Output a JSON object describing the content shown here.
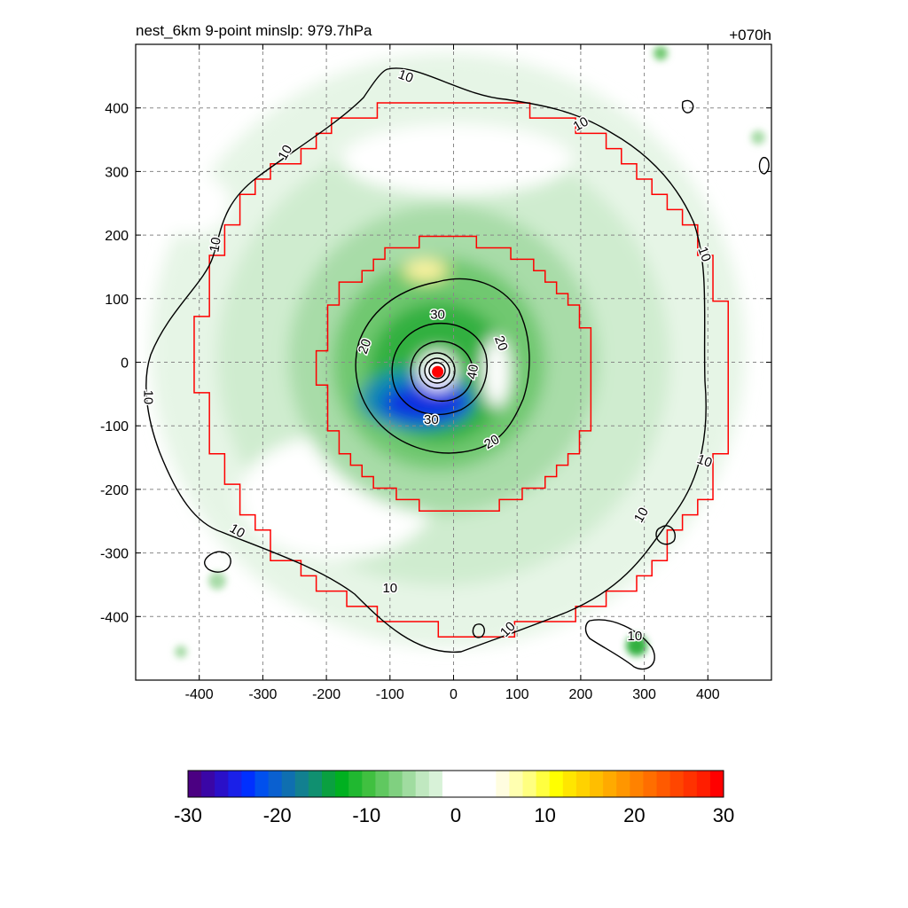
{
  "chart_data": {
    "type": "heatmap",
    "title_left": "nest_6km  9-point minslp: 979.7hPa",
    "title_right": "+070h",
    "x_range": [
      -500,
      500
    ],
    "y_range": [
      -500,
      500
    ],
    "x_ticks": [
      -400,
      -300,
      -200,
      -100,
      0,
      100,
      200,
      300,
      400
    ],
    "y_ticks": [
      400,
      300,
      200,
      100,
      0,
      -100,
      -200,
      -300,
      -400
    ],
    "grid": true,
    "colorbar": {
      "range": [
        -30,
        30
      ],
      "ticks": [
        -30,
        -20,
        -10,
        0,
        10,
        20,
        30
      ],
      "colors": [
        "#4b0082",
        "#3a06a6",
        "#2a10c8",
        "#1a20e8",
        "#0030ff",
        "#0050ee",
        "#0a60d0",
        "#0f6fb0",
        "#128090",
        "#109070",
        "#0aa040",
        "#00b020",
        "#20b830",
        "#40c040",
        "#60c860",
        "#80d080",
        "#a0dca0",
        "#c0e8c0",
        "#d8f2d8",
        "#ffffff",
        "#ffffff",
        "#ffffff",
        "#ffffff",
        "#fffde0",
        "#ffffb0",
        "#ffff80",
        "#ffff40",
        "#ffff00",
        "#ffe600",
        "#ffd200",
        "#ffbe00",
        "#ffaa00",
        "#ff9600",
        "#ff8200",
        "#ff6e00",
        "#ff5a00",
        "#ff4600",
        "#ff3200",
        "#ff1e00",
        "#ff0000"
      ]
    },
    "contour_labels": [
      {
        "text": "10",
        "x": -75,
        "y": 450,
        "rot": 20
      },
      {
        "text": "10",
        "x": 200,
        "y": 375,
        "rot": -30
      },
      {
        "text": "10",
        "x": -265,
        "y": 330,
        "rot": -60
      },
      {
        "text": "10",
        "x": -375,
        "y": 185,
        "rot": -80
      },
      {
        "text": "10",
        "x": 395,
        "y": 170,
        "rot": 70
      },
      {
        "text": "10",
        "x": -480,
        "y": -55,
        "rot": 90
      },
      {
        "text": "10",
        "x": 395,
        "y": -155,
        "rot": 20
      },
      {
        "text": "10",
        "x": 295,
        "y": -240,
        "rot": -60
      },
      {
        "text": "10",
        "x": -340,
        "y": -265,
        "rot": 30
      },
      {
        "text": "10",
        "x": -100,
        "y": -355,
        "rot": 0
      },
      {
        "text": "10",
        "x": 85,
        "y": -420,
        "rot": -45
      },
      {
        "text": "10",
        "x": 285,
        "y": -430,
        "rot": 0
      },
      {
        "text": "20",
        "x": -140,
        "y": 25,
        "rot": -70
      },
      {
        "text": "20",
        "x": 75,
        "y": 30,
        "rot": 70
      },
      {
        "text": "20",
        "x": 60,
        "y": -125,
        "rot": -30
      },
      {
        "text": "30",
        "x": -25,
        "y": 75,
        "rot": 0
      },
      {
        "text": "30",
        "x": -35,
        "y": -90,
        "rot": 0
      },
      {
        "text": "40",
        "x": 30,
        "y": -15,
        "rot": -80
      }
    ],
    "center_marker": {
      "x": -25,
      "y": -15
    }
  }
}
